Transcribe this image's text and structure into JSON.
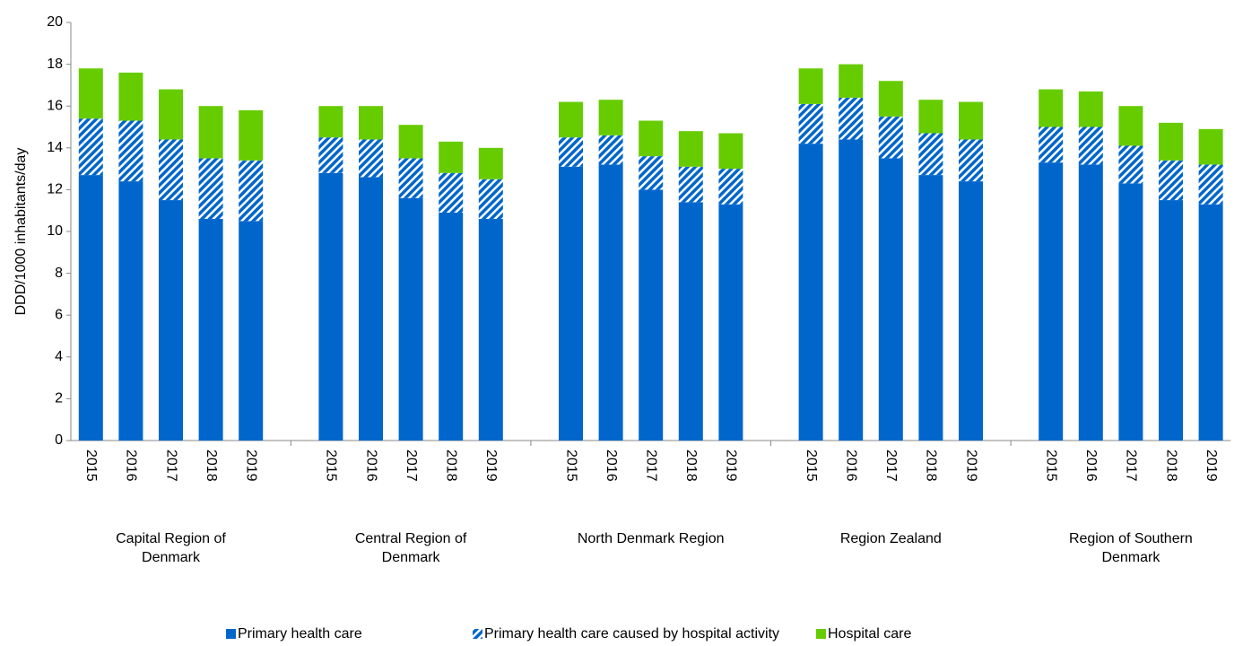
{
  "chart_data": {
    "type": "grouped-stacked-bar",
    "y_label": "DDD/1000 inhabitants/day",
    "groups": [
      "Capital Region of Denmark",
      "Central Region of Denmark",
      "North Denmark Region",
      "Region Zealand",
      "Region of Southern Denmark"
    ],
    "categories": [
      [
        "2015",
        "2016",
        "2017",
        "2018",
        "2019"
      ],
      [
        "2015",
        "2016",
        "2017",
        "2018",
        "2019"
      ],
      [
        "2015",
        "2016",
        "2017",
        "2018",
        "2019"
      ],
      [
        "2015",
        "2016",
        "2017",
        "2018",
        "2019"
      ],
      [
        "2015",
        "2016",
        "2017",
        "2018",
        "2019"
      ]
    ],
    "series": [
      {
        "name": "Primary health care",
        "color": "#0066cc",
        "pattern": "solid",
        "values": [
          [
            12.7,
            12.4,
            11.5,
            10.6,
            10.5
          ],
          [
            12.8,
            12.6,
            11.6,
            10.9,
            10.6
          ],
          [
            13.1,
            13.2,
            12.0,
            11.4,
            11.3
          ],
          [
            14.2,
            14.4,
            13.5,
            12.7,
            12.4
          ],
          [
            13.3,
            13.2,
            12.3,
            11.5,
            11.3
          ]
        ]
      },
      {
        "name": "Primary health care caused by hospital activity",
        "color": "#0066cc",
        "pattern": "hatched",
        "values": [
          [
            2.7,
            2.9,
            2.9,
            2.9,
            2.9
          ],
          [
            1.7,
            1.8,
            1.9,
            1.9,
            1.9
          ],
          [
            1.4,
            1.4,
            1.6,
            1.7,
            1.7
          ],
          [
            1.9,
            2.0,
            2.0,
            2.0,
            2.0
          ],
          [
            1.7,
            1.8,
            1.8,
            1.9,
            1.9
          ]
        ]
      },
      {
        "name": "Hospital care",
        "color": "#66cc00",
        "pattern": "solid",
        "values": [
          [
            2.4,
            2.3,
            2.4,
            2.5,
            2.4
          ],
          [
            1.5,
            1.6,
            1.6,
            1.5,
            1.5
          ],
          [
            1.7,
            1.7,
            1.7,
            1.7,
            1.7
          ],
          [
            1.7,
            1.6,
            1.7,
            1.6,
            1.8
          ],
          [
            1.8,
            1.7,
            1.9,
            1.8,
            1.7
          ]
        ]
      }
    ],
    "ylim": [
      0,
      20
    ],
    "yticks": [
      0,
      2,
      4,
      6,
      8,
      10,
      12,
      14,
      16,
      18,
      20
    ],
    "grid": false,
    "legend": "bottom"
  }
}
